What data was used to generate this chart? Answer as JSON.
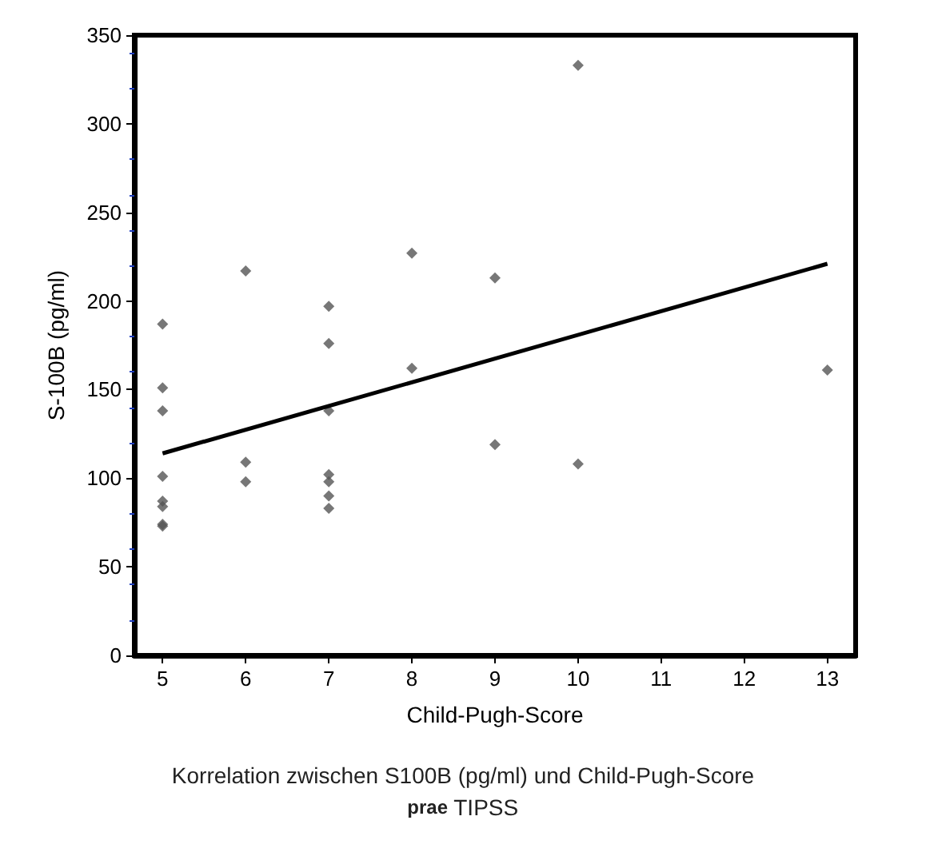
{
  "chart_data": {
    "type": "scatter",
    "xlabel": "Child-Pugh-Score",
    "ylabel": "S-100B (pg/ml)",
    "annotations": [
      "Korrelation zwischen S100B (pg/ml) und Child-Pugh-Score",
      "prae TIPSS"
    ],
    "series": [
      {
        "color": "#555555",
        "marker": "diamond",
        "x": [
          5,
          5,
          5,
          5,
          5,
          5,
          5,
          5,
          6,
          6,
          6,
          7,
          7,
          7,
          7,
          7,
          7,
          7,
          8,
          8,
          9,
          9,
          10,
          10,
          13
        ],
        "values": [
          187,
          151,
          138,
          101,
          87,
          84,
          74,
          73,
          217,
          109,
          98,
          197,
          176,
          138,
          102,
          98,
          90,
          83,
          227,
          162,
          213,
          119,
          333,
          108,
          161
        ]
      },
      {
        "type": "line",
        "color": "#000000",
        "marker": "none",
        "x": [
          5,
          13
        ],
        "values": [
          114,
          221
        ]
      }
    ],
    "xlim": [
      4.66,
      13.34
    ],
    "xticks": [
      5,
      6,
      7,
      8,
      9,
      10,
      11,
      12,
      13
    ],
    "ylim": [
      0,
      350
    ],
    "yticks": [
      0,
      50,
      100,
      150,
      200,
      250,
      300,
      350
    ],
    "grid": false,
    "line_style": "solid"
  }
}
